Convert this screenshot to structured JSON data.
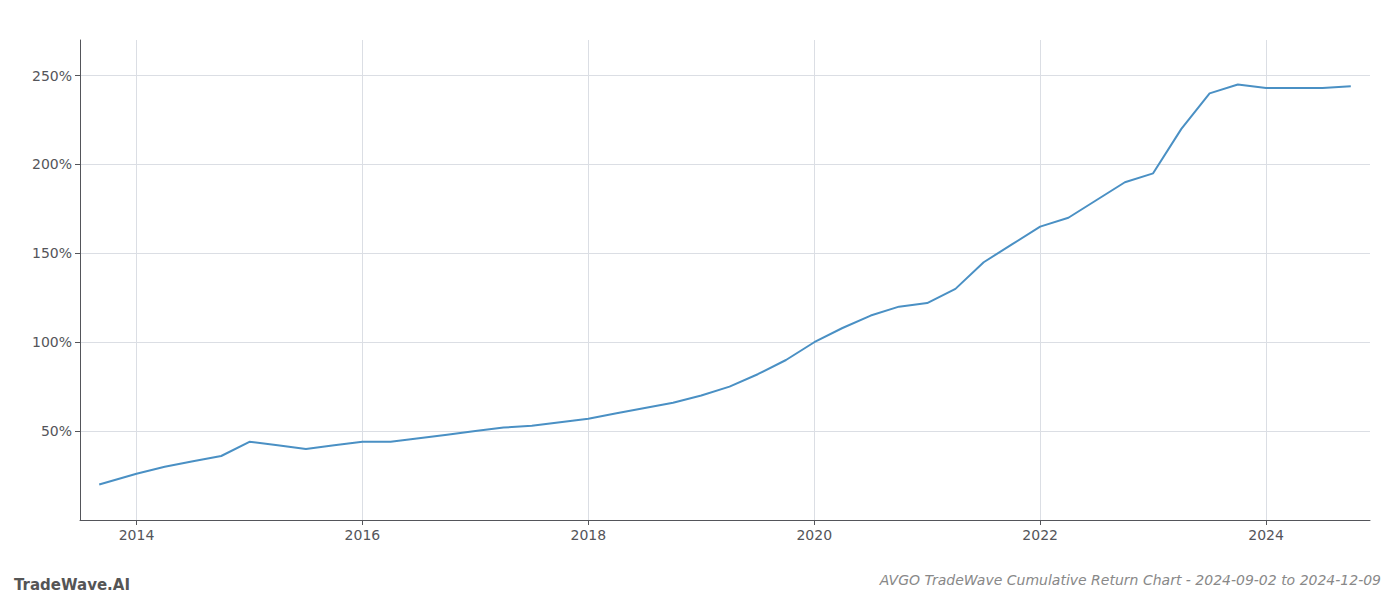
{
  "chart_data": {
    "type": "line",
    "title": "AVGO TradeWave Cumulative Return Chart - 2024-09-02 to 2024-12-09",
    "annotations": [
      "TradeWave.AI"
    ],
    "x": [
      2013.67,
      2014.0,
      2014.25,
      2014.5,
      2014.75,
      2015.0,
      2015.25,
      2015.5,
      2015.75,
      2016.0,
      2016.25,
      2016.5,
      2016.75,
      2017.0,
      2017.25,
      2017.5,
      2017.75,
      2018.0,
      2018.25,
      2018.5,
      2018.75,
      2019.0,
      2019.25,
      2019.5,
      2019.75,
      2020.0,
      2020.25,
      2020.5,
      2020.75,
      2021.0,
      2021.25,
      2021.5,
      2021.75,
      2022.0,
      2022.25,
      2022.5,
      2022.75,
      2023.0,
      2023.25,
      2023.5,
      2023.75,
      2024.0,
      2024.25,
      2024.5,
      2024.75
    ],
    "values": [
      20,
      26,
      30,
      33,
      36,
      44,
      42,
      40,
      42,
      44,
      44,
      46,
      48,
      50,
      52,
      53,
      55,
      57,
      60,
      63,
      66,
      70,
      75,
      82,
      90,
      100,
      108,
      115,
      120,
      122,
      130,
      145,
      155,
      165,
      170,
      180,
      190,
      195,
      220,
      240,
      245,
      243,
      243,
      243,
      244
    ],
    "color": "#4a90c4",
    "xlim": [
      2013.5,
      2024.92
    ],
    "xticks": [
      2014,
      2016,
      2018,
      2020,
      2022,
      2024
    ],
    "ylim": [
      0,
      270
    ],
    "yticks": [
      {
        "value": 50,
        "label": "50%"
      },
      {
        "value": 100,
        "label": "100%"
      },
      {
        "value": 150,
        "label": "150%"
      },
      {
        "value": 200,
        "label": "200%"
      },
      {
        "value": 250,
        "label": "250%"
      }
    ],
    "grid": true
  }
}
